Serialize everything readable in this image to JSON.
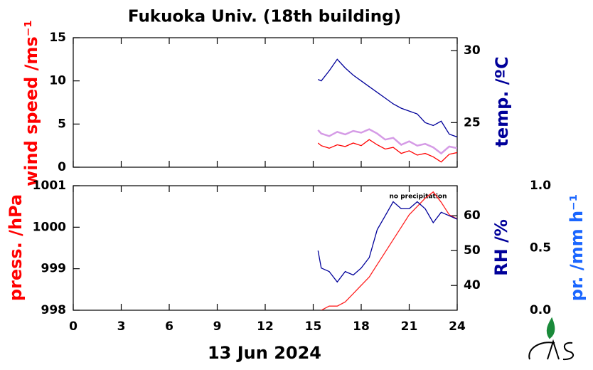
{
  "chart_data": [
    {
      "type": "line",
      "title": "Fukuoka Univ. (18th building)",
      "ylabel": "wind speed /ms⁻¹",
      "y2label": "temp. /ºC",
      "xlim": [
        0,
        24
      ],
      "ylim": [
        0,
        15
      ],
      "yticks": [
        0,
        5,
        10,
        15
      ],
      "y2lim": [
        21.9,
        30.9
      ],
      "y2ticks": [
        25,
        30
      ],
      "x": [
        15.3,
        15.5,
        16,
        16.5,
        17,
        17.5,
        18,
        18.5,
        19,
        19.5,
        20,
        20.5,
        21,
        21.5,
        22,
        22.5,
        23,
        23.5,
        24
      ],
      "series": [
        {
          "color": "#d59be6",
          "values": [
            4.3,
            3.9,
            3.6,
            4.1,
            3.8,
            4.2,
            4.0,
            4.4,
            3.9,
            3.2,
            3.4,
            2.6,
            3.0,
            2.5,
            2.7,
            2.3,
            1.6,
            2.4,
            2.2
          ]
        },
        {
          "color": "#ff0000",
          "values": [
            2.8,
            2.5,
            2.2,
            2.6,
            2.4,
            2.8,
            2.5,
            3.2,
            2.6,
            2.1,
            2.3,
            1.6,
            1.9,
            1.4,
            1.6,
            1.2,
            0.6,
            1.5,
            1.7
          ]
        },
        {
          "color": "#00009a",
          "axis": "y2",
          "values": [
            28.0,
            27.9,
            28.6,
            29.4,
            28.8,
            28.3,
            27.9,
            27.5,
            27.1,
            26.7,
            26.3,
            26.0,
            25.8,
            25.6,
            25.0,
            24.8,
            25.1,
            24.2,
            24.0
          ]
        }
      ]
    },
    {
      "type": "line",
      "ylabel": "press. /hPa",
      "y2label": "RH /%",
      "y3label": "pr. /mm h⁻¹",
      "xlabel": "13 Jun 2024",
      "annotation": "no precipitation",
      "xlim": [
        0,
        24
      ],
      "xticks": [
        0,
        3,
        6,
        9,
        12,
        15,
        18,
        21,
        24
      ],
      "ylim": [
        998,
        1001
      ],
      "yticks": [
        998,
        999,
        1000,
        1001
      ],
      "y2lim": [
        32.9,
        68.6
      ],
      "y2ticks": [
        40,
        50,
        60
      ],
      "y3lim": [
        0,
        1
      ],
      "y3ticks": [
        {
          "value": 0,
          "label": "0.0"
        },
        0.5,
        {
          "value": 1,
          "label": "1.0"
        }
      ],
      "x": [
        15.3,
        15.5,
        16,
        16.5,
        17,
        17.5,
        18,
        18.5,
        19,
        19.5,
        20,
        20.5,
        21,
        21.5,
        22,
        22.5,
        23,
        23.5,
        24
      ],
      "series": [
        {
          "color": "#ff2020",
          "values": [
            997.9,
            998.0,
            998.1,
            998.1,
            998.2,
            998.4,
            998.6,
            998.8,
            999.1,
            999.4,
            999.7,
            1000.0,
            1000.3,
            1000.5,
            1000.7,
            1000.85,
            1000.6,
            1000.3,
            1000.2
          ]
        },
        {
          "color": "#00009a",
          "axis": "y2",
          "values": [
            50,
            45,
            44,
            41,
            44,
            43,
            45,
            48,
            56,
            60,
            64,
            62,
            62,
            64,
            62,
            58,
            61,
            60,
            59
          ]
        }
      ]
    }
  ]
}
